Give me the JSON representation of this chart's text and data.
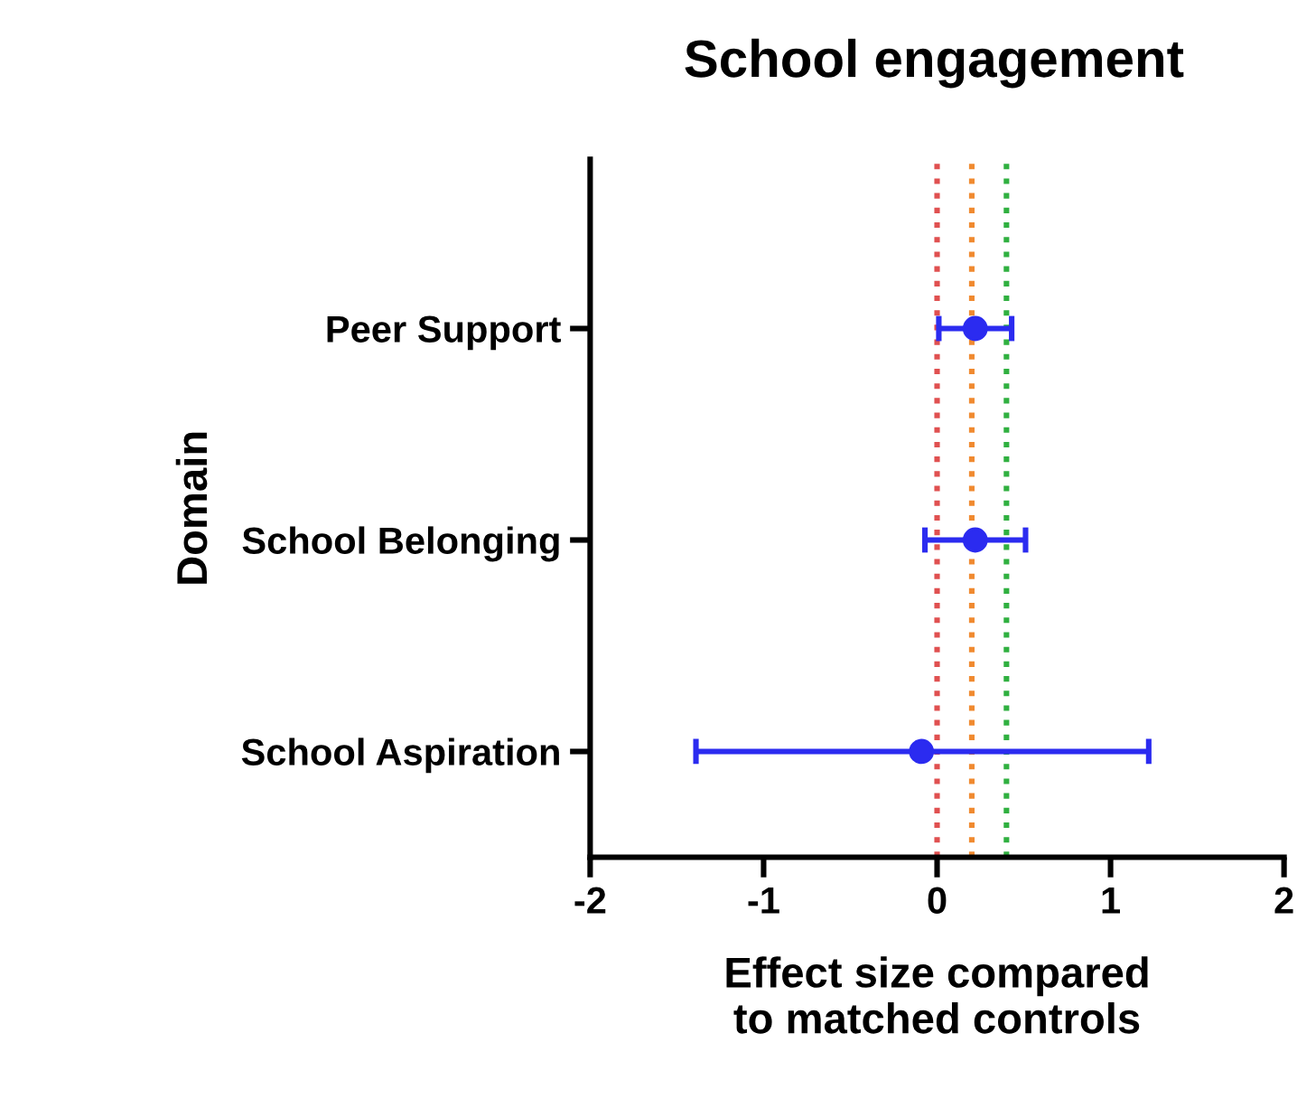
{
  "chart_data": {
    "type": "scatter",
    "orientation": "horizontal",
    "title": "School engagement",
    "xlabel": "Effect size compared\nto matched controls",
    "ylabel": "Domain",
    "categories": [
      "Peer Support",
      "School Belonging",
      "School Aspiration"
    ],
    "series": [
      {
        "color": "#2b2bf0",
        "values": [
          0.22,
          0.22,
          -0.09
        ],
        "errors": [
          [
            0.01,
            0.43
          ],
          [
            -0.07,
            0.51
          ],
          [
            -1.39,
            1.22
          ]
        ]
      }
    ],
    "marker": "circle",
    "xlim": [
      -2,
      2
    ],
    "xticks": [
      -2,
      -1,
      0,
      1,
      2
    ],
    "grid": false,
    "legend": false,
    "ref_lines": [
      {
        "axis": "x",
        "value": 0,
        "color": "#e05050",
        "line_style": "dotted"
      },
      {
        "axis": "x",
        "value": 0.2,
        "color": "#f08a30",
        "line_style": "dotted"
      },
      {
        "axis": "x",
        "value": 0.4,
        "color": "#30b040",
        "line_style": "dotted"
      }
    ]
  }
}
